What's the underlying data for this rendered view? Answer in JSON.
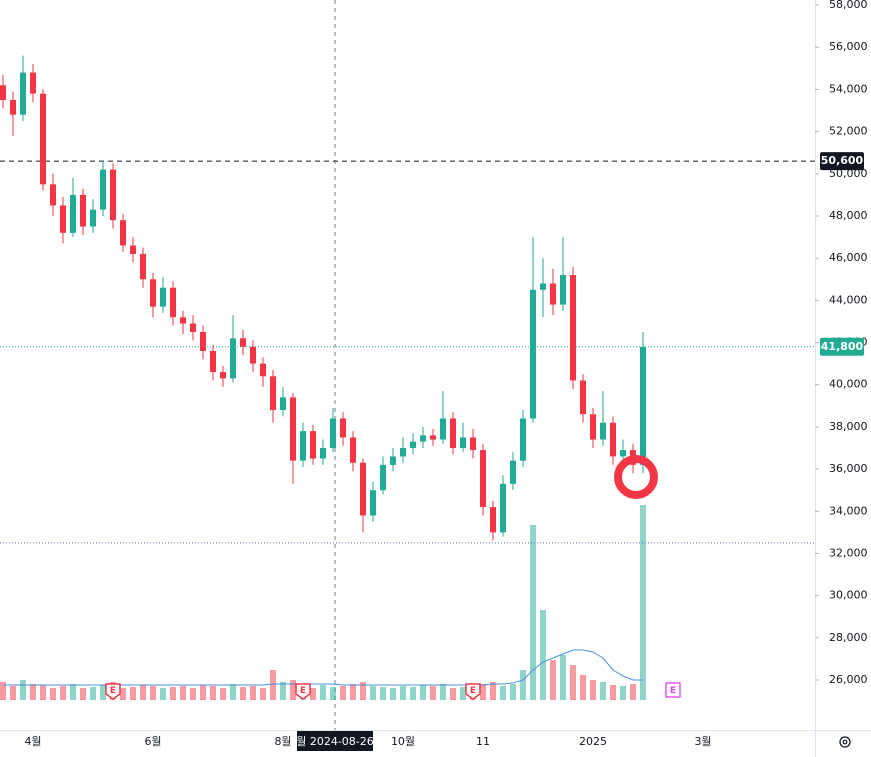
{
  "chart_data": {
    "type": "candlestick",
    "ylim": [
      23630,
      58240
    ],
    "yticks": [
      {
        "value": 26000,
        "label": "26,000"
      },
      {
        "value": 28000,
        "label": "28,000"
      },
      {
        "value": 30000,
        "label": "30,000"
      },
      {
        "value": 32000,
        "label": "32,000"
      },
      {
        "value": 34000,
        "label": "34,000"
      },
      {
        "value": 36000,
        "label": "36,000"
      },
      {
        "value": 38000,
        "label": "38,000"
      },
      {
        "value": 40000,
        "label": "40,000"
      },
      {
        "value": 42000,
        "label": "42,000"
      },
      {
        "value": 44000,
        "label": "44,000"
      },
      {
        "value": 46000,
        "label": "46,000"
      },
      {
        "value": 48000,
        "label": "48,000"
      },
      {
        "value": 50000,
        "label": "50,000"
      },
      {
        "value": 52000,
        "label": "52,000"
      },
      {
        "value": 54000,
        "label": "54,000"
      },
      {
        "value": 56000,
        "label": "56,000"
      },
      {
        "value": 58000,
        "label": "58,000"
      }
    ],
    "up_color": "#22ab94",
    "down_color": "#f23645",
    "candles": [
      [
        54200,
        54700,
        53100,
        53500
      ],
      [
        53500,
        53900,
        51800,
        52800
      ],
      [
        52800,
        55600,
        52500,
        54800
      ],
      [
        54800,
        55200,
        53400,
        53800
      ],
      [
        53800,
        54000,
        49200,
        49500
      ],
      [
        49500,
        50000,
        48000,
        48500
      ],
      [
        48500,
        48900,
        46700,
        47200
      ],
      [
        47200,
        49800,
        47000,
        49000
      ],
      [
        49000,
        49300,
        47100,
        47500
      ],
      [
        47500,
        48800,
        47200,
        48300
      ],
      [
        48300,
        50600,
        48000,
        50200
      ],
      [
        50200,
        50500,
        47400,
        47800
      ],
      [
        47800,
        48100,
        46300,
        46600
      ],
      [
        46600,
        47000,
        45800,
        46200
      ],
      [
        46200,
        46500,
        44600,
        45000
      ],
      [
        45000,
        45300,
        43200,
        43700
      ],
      [
        43700,
        45100,
        43400,
        44600
      ],
      [
        44600,
        44900,
        42800,
        43200
      ],
      [
        43200,
        43500,
        42400,
        42900
      ],
      [
        42900,
        43300,
        42100,
        42500
      ],
      [
        42500,
        42800,
        41200,
        41600
      ],
      [
        41600,
        41900,
        40200,
        40600
      ],
      [
        40600,
        40900,
        39900,
        40300
      ],
      [
        40300,
        43300,
        40100,
        42200
      ],
      [
        42200,
        42600,
        41400,
        41800
      ],
      [
        41800,
        42100,
        40600,
        41000
      ],
      [
        41000,
        41300,
        39900,
        40400
      ],
      [
        40400,
        40700,
        38200,
        38800
      ],
      [
        38800,
        39900,
        38500,
        39400
      ],
      [
        39400,
        39600,
        35300,
        36400
      ],
      [
        36400,
        38200,
        36100,
        37800
      ],
      [
        37800,
        38100,
        36200,
        36500
      ],
      [
        36500,
        37400,
        36200,
        37000
      ],
      [
        37000,
        38900,
        36800,
        38400
      ],
      [
        38400,
        38700,
        37100,
        37500
      ],
      [
        37500,
        37800,
        35900,
        36300
      ],
      [
        36300,
        36500,
        33000,
        33800
      ],
      [
        33800,
        35400,
        33500,
        35000
      ],
      [
        35000,
        36600,
        34800,
        36200
      ],
      [
        36200,
        37000,
        35900,
        36600
      ],
      [
        36600,
        37500,
        36300,
        37000
      ],
      [
        37000,
        37700,
        36700,
        37300
      ],
      [
        37300,
        38000,
        37000,
        37600
      ],
      [
        37600,
        37900,
        37100,
        37400
      ],
      [
        37400,
        39700,
        37200,
        38400
      ],
      [
        38400,
        38700,
        36700,
        37000
      ],
      [
        37000,
        38200,
        36800,
        37500
      ],
      [
        37500,
        37900,
        36500,
        36900
      ],
      [
        36900,
        37200,
        33800,
        34200
      ],
      [
        34200,
        34500,
        32600,
        33000
      ],
      [
        33000,
        35700,
        32800,
        35300
      ],
      [
        35300,
        36800,
        35000,
        36400
      ],
      [
        36400,
        38800,
        36100,
        38400
      ],
      [
        38400,
        47000,
        38200,
        44500
      ],
      [
        44500,
        46000,
        43200,
        44800
      ],
      [
        44800,
        45500,
        43300,
        43800
      ],
      [
        43800,
        47000,
        43500,
        45200
      ],
      [
        45200,
        45600,
        39800,
        40200
      ],
      [
        40200,
        40500,
        38200,
        38600
      ],
      [
        38600,
        38900,
        37000,
        37400
      ],
      [
        37400,
        39700,
        37100,
        38200
      ],
      [
        38200,
        38500,
        36200,
        36600
      ],
      [
        36600,
        37400,
        36300,
        36900
      ],
      [
        36900,
        37200,
        35800,
        36200
      ],
      [
        36200,
        42500,
        35800,
        41800
      ]
    ],
    "volume": [
      18,
      14,
      20,
      16,
      15,
      12,
      14,
      16,
      12,
      13,
      15,
      18,
      12,
      13,
      15,
      14,
      12,
      13,
      14,
      12,
      15,
      14,
      12,
      16,
      13,
      14,
      12,
      30,
      18,
      20,
      14,
      12,
      15,
      13,
      14,
      16,
      18,
      14,
      13,
      12,
      14,
      13,
      15,
      14,
      16,
      12,
      13,
      14,
      16,
      18,
      14,
      16,
      30,
      175,
      90,
      40,
      45,
      35,
      25,
      20,
      18,
      15,
      14,
      16,
      195
    ],
    "volume_ma": [
      15,
      15,
      15,
      15,
      15,
      15,
      15,
      15,
      15,
      15,
      15,
      15,
      15,
      15,
      15,
      15,
      15,
      15,
      15,
      15,
      15,
      15,
      15,
      15,
      15,
      15,
      15,
      16,
      16,
      16,
      16,
      16,
      16,
      16,
      15,
      15,
      15,
      15,
      15,
      15,
      15,
      15,
      15,
      15,
      15,
      15,
      15,
      15,
      15,
      16,
      16,
      17,
      20,
      30,
      38,
      42,
      46,
      50,
      50,
      48,
      42,
      30,
      24,
      20,
      20
    ],
    "volume_color": "#4a90e2",
    "vlim": [
      0,
      220
    ],
    "levels": [
      {
        "value": 50600,
        "label": "50,600",
        "style": "dashed",
        "box": "#131722"
      },
      {
        "value": 41800,
        "label": "41,800",
        "style": "dotted",
        "box": "#22ab94"
      },
      {
        "value": 32500,
        "style": "dotted"
      }
    ],
    "x_labels": [
      {
        "label": "4월",
        "candle": 3
      },
      {
        "label": "6월",
        "candle": 15
      },
      {
        "label": "8월",
        "candle": 28
      },
      {
        "label": "10월",
        "candle": 40
      },
      {
        "label": "11",
        "candle": 48
      },
      {
        "label": "2025",
        "candle": 59
      },
      {
        "label": "3월",
        "candle": 70
      }
    ],
    "crosshair": {
      "candle": 33,
      "label": "월 2024-08-26"
    },
    "earnings": [
      {
        "label": "E",
        "candle": 11
      },
      {
        "label": "E",
        "candle": 30
      },
      {
        "label": "E",
        "candle": 47
      },
      {
        "label": "E",
        "candle": 67,
        "future": true
      }
    ]
  }
}
